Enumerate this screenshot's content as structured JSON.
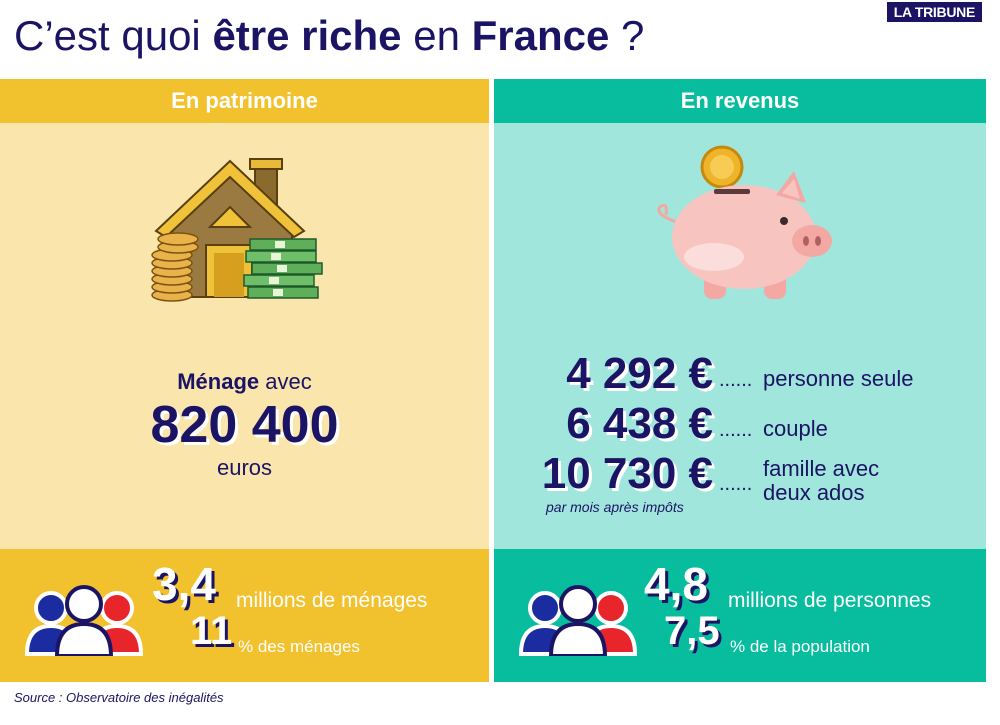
{
  "header": {
    "title_part1": "C’est quoi ",
    "title_bold1": "être riche",
    "title_part2": " en ",
    "title_bold2": "France",
    "title_part3": " ?",
    "brand": "LA TRIBUNE"
  },
  "patrimoine": {
    "heading": "En patrimoine",
    "menage_bold": "Ménage",
    "menage_rest": " avec",
    "amount": "820 400",
    "unit": "euros",
    "stat1_value": "3,4",
    "stat1_label": "millions de ménages",
    "stat2_value": "11",
    "stat2_label": "% des ménages"
  },
  "revenus": {
    "heading": "En revenus",
    "rows": [
      {
        "value": "4 292 €",
        "dots": "......",
        "label": "personne seule"
      },
      {
        "value": "6 438 €",
        "dots": "......",
        "label": "couple"
      },
      {
        "value": "10 730 €",
        "dots": "......",
        "label": "famille avec\ndeux ados"
      }
    ],
    "note": "par mois après impôts",
    "stat1_value": "4,8",
    "stat1_label": "millions de personnes",
    "stat2_value": "7,5",
    "stat2_label": "% de la population"
  },
  "footer": {
    "source": "Source : Observatoire des inégalités"
  },
  "colors": {
    "navy": "#1b1464",
    "gold": "#f2c12e",
    "light_gold": "#fae6ad",
    "teal": "#07bd9e",
    "light_teal": "#a1e6dc"
  }
}
